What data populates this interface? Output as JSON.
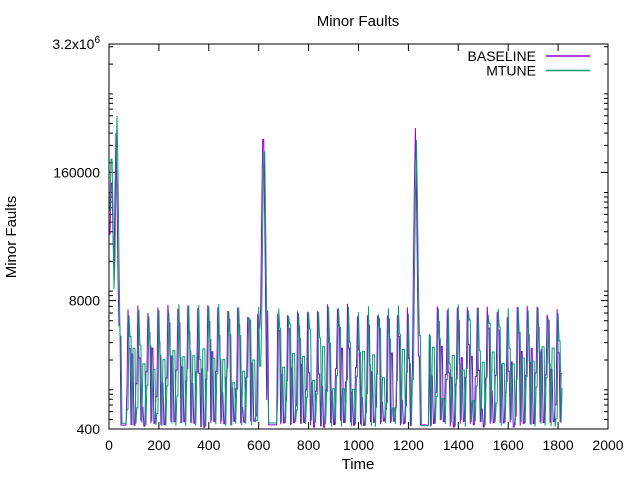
{
  "page": {
    "background_color": "#ffffff",
    "axis_color": "#000000",
    "text_color": "#000000"
  },
  "chart_data": {
    "type": "line",
    "title": "Minor Faults",
    "xlabel": "Time",
    "ylabel": "Minor Faults",
    "grid": false,
    "legend_position": "top-right-inside",
    "x_axis": {
      "min": 0,
      "max": 2000,
      "tick_step": 200,
      "ticks": [
        0,
        200,
        400,
        600,
        800,
        1000,
        1200,
        1400,
        1600,
        1800,
        2000
      ]
    },
    "y_axis": {
      "scale": "log",
      "min": 400,
      "max": 3200000,
      "major_ticks": [
        {
          "value": 400,
          "label": "400"
        },
        {
          "value": 8000,
          "label": "8000"
        },
        {
          "value": 160000,
          "label": "160000"
        },
        {
          "value": 3200000,
          "label": "3.2x10",
          "sup": "6"
        }
      ],
      "minor_tick_rule": "mantissa 1-9 per decade"
    },
    "series": [
      {
        "name": "BASELINE",
        "color": "#9400d3",
        "phase": 6
      },
      {
        "name": "MTUNE",
        "color": "#009e73",
        "phase": 0
      }
    ],
    "oscillation": {
      "t_start": 4,
      "t_end": 1816,
      "sample_dt": 4,
      "period": 40,
      "peak_value": 6300,
      "mid_value": 2400,
      "low_value": 430
    },
    "startup_transient": {
      "t": 10,
      "baseline": 160000,
      "mtune": 280000
    },
    "spikes": [
      {
        "t": 30,
        "baseline": 400000,
        "mtune": 600000,
        "quiet_until": 70
      },
      {
        "t": 620,
        "baseline": 600000,
        "mtune": 450000,
        "quiet_until": 672
      },
      {
        "t": 1230,
        "baseline": 450000,
        "mtune": 340000,
        "quiet_until": 1282
      }
    ]
  }
}
